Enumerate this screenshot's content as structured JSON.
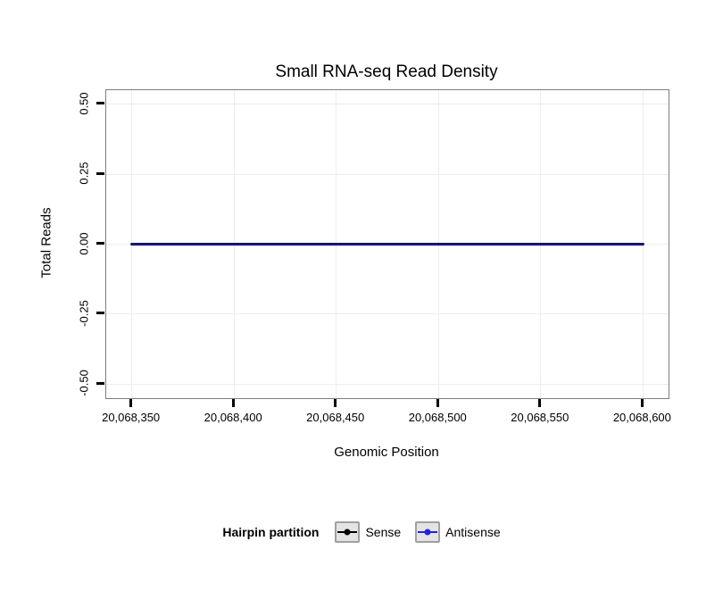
{
  "title": "Small RNA-seq Read Density",
  "chart_data": {
    "type": "line",
    "title": "Small RNA-seq Read Density",
    "xlabel": "Genomic Position",
    "ylabel": "Total Reads",
    "xlim": [
      20068337.5,
      20068612.5
    ],
    "ylim": [
      -0.55,
      0.55
    ],
    "x_ticks": [
      20068350,
      20068400,
      20068450,
      20068500,
      20068550,
      20068600
    ],
    "x_tick_labels": [
      "20,068,350",
      "20,068,400",
      "20,068,450",
      "20,068,500",
      "20,068,550",
      "20,068,600"
    ],
    "y_ticks": [
      0.5,
      0.25,
      0,
      -0.25,
      -0.5
    ],
    "y_tick_labels": [
      "0.50",
      "0.25",
      "0.00",
      "-0.25",
      "-0.50"
    ],
    "grid": true,
    "legend_position": "bottom",
    "legend_title": "Hairpin partition",
    "series": [
      {
        "name": "Sense",
        "color": "#000000",
        "x": [
          20068350,
          20068600
        ],
        "y": [
          0,
          0
        ]
      },
      {
        "name": "Antisense",
        "color": "#2222dd",
        "x": [
          20068350,
          20068600
        ],
        "y": [
          0,
          0
        ]
      }
    ]
  },
  "legend": {
    "title": "Hairpin partition",
    "items": [
      {
        "label": "Sense",
        "color": "#000000"
      },
      {
        "label": "Antisense",
        "color": "#2222dd"
      }
    ]
  },
  "colors": {
    "grid": "#ededed",
    "panel_border": "#7d7d7d",
    "tick": "#000000",
    "legend_key_bg": "#e4e4e4",
    "legend_key_border": "#a0a0a0"
  }
}
